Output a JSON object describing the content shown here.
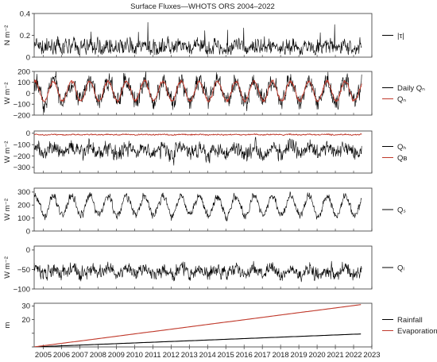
{
  "figure": {
    "title": "Surface Fluxes—WHOTS ORS 2004–2022"
  },
  "colors": {
    "black": "#000000",
    "red": "#c0392b",
    "frame": "#333333"
  },
  "chart_data": [
    {
      "id": "tau",
      "type": "line",
      "ylabel": "N m⁻²",
      "ylim": [
        0,
        0.4
      ],
      "yticks": [
        0,
        0.2,
        0.4
      ],
      "ytick_labels": [
        "0",
        "0.2",
        "0.4"
      ],
      "xlim": [
        2004.5,
        2023.0
      ],
      "legend_position": "right",
      "series": [
        {
          "name": "|τ|",
          "color": "#000000",
          "mean": 0.09,
          "seasonal_amp": 0.015,
          "noise": 0.06,
          "spike_max": 0.32
        }
      ]
    },
    {
      "id": "qn",
      "type": "line",
      "ylabel": "W m⁻²",
      "ylim": [
        -200,
        200
      ],
      "yticks": [
        -200,
        -100,
        0,
        100,
        200
      ],
      "ytick_labels": [
        "−200",
        "−100",
        "0",
        "100",
        "200"
      ],
      "xlim": [
        2004.5,
        2023.0
      ],
      "legend_position": "right",
      "series": [
        {
          "name": "Daily Qₙ",
          "color": "#000000",
          "mean": 20,
          "seasonal_amp": 90,
          "noise": 70
        },
        {
          "name": "Qₙ",
          "color": "#c0392b",
          "mean": 20,
          "seasonal_amp": 90,
          "noise": 12
        }
      ]
    },
    {
      "id": "qh_qb",
      "type": "line",
      "ylabel": "W m⁻²",
      "ylim": [
        -350,
        20
      ],
      "yticks": [
        -300,
        -200,
        -100,
        0
      ],
      "ytick_labels": [
        "−300",
        "−200",
        "−100",
        "0"
      ],
      "xlim": [
        2004.5,
        2023.0
      ],
      "legend_position": "right",
      "series": [
        {
          "name": "Qₕ",
          "color": "#000000",
          "mean": -150,
          "seasonal_amp": 30,
          "noise": 55
        },
        {
          "name": "Qʙ",
          "color": "#c0392b",
          "mean": -12,
          "seasonal_amp": 2,
          "noise": 4
        }
      ]
    },
    {
      "id": "qs",
      "type": "line",
      "ylabel": "W m⁻²",
      "ylim": [
        0,
        330
      ],
      "yticks": [
        0,
        100,
        200,
        300
      ],
      "ytick_labels": [
        "0",
        "100",
        "200",
        "300"
      ],
      "xlim": [
        2004.5,
        2023.0
      ],
      "legend_position": "right",
      "series": [
        {
          "name": "Qₛ",
          "color": "#000000",
          "mean": 195,
          "seasonal_amp": 75,
          "noise": 25
        }
      ]
    },
    {
      "id": "ql",
      "type": "line",
      "ylabel": "W m⁻²",
      "ylim": [
        -100,
        10
      ],
      "yticks": [
        -100,
        -50,
        0
      ],
      "ytick_labels": [
        "−100",
        "−50",
        "0"
      ],
      "xlim": [
        2004.5,
        2023.0
      ],
      "legend_position": "right",
      "series": [
        {
          "name": "Qₗ",
          "color": "#000000",
          "mean": -55,
          "seasonal_amp": 6,
          "noise": 14
        }
      ]
    },
    {
      "id": "water",
      "type": "line",
      "ylabel": "m",
      "ylim": [
        0,
        32
      ],
      "yticks": [
        0,
        10,
        20,
        30
      ],
      "ytick_labels": [
        "",
        "",
        "20",
        "30"
      ],
      "xlim": [
        2004.5,
        2023.0
      ],
      "xticks": [
        2005,
        2006,
        2007,
        2008,
        2009,
        2010,
        2011,
        2012,
        2013,
        2014,
        2015,
        2016,
        2017,
        2018,
        2019,
        2020,
        2021,
        2022,
        2023
      ],
      "xtick_labels": [
        "2005",
        "2006",
        "2007",
        "2008",
        "2009",
        "2010",
        "2011",
        "2012",
        "2013",
        "2014",
        "2015",
        "2016",
        "2017",
        "2018",
        "2019",
        "2020",
        "2021",
        "2022",
        "2023"
      ],
      "legend_position": "right",
      "series": [
        {
          "name": "Rainfall",
          "color": "#000000",
          "x": [
            2004.5,
            2022.4
          ],
          "y": [
            0,
            9.5
          ]
        },
        {
          "name": "Evaporation",
          "color": "#c0392b",
          "x": [
            2004.5,
            2022.4
          ],
          "y": [
            0,
            31
          ]
        }
      ]
    }
  ]
}
